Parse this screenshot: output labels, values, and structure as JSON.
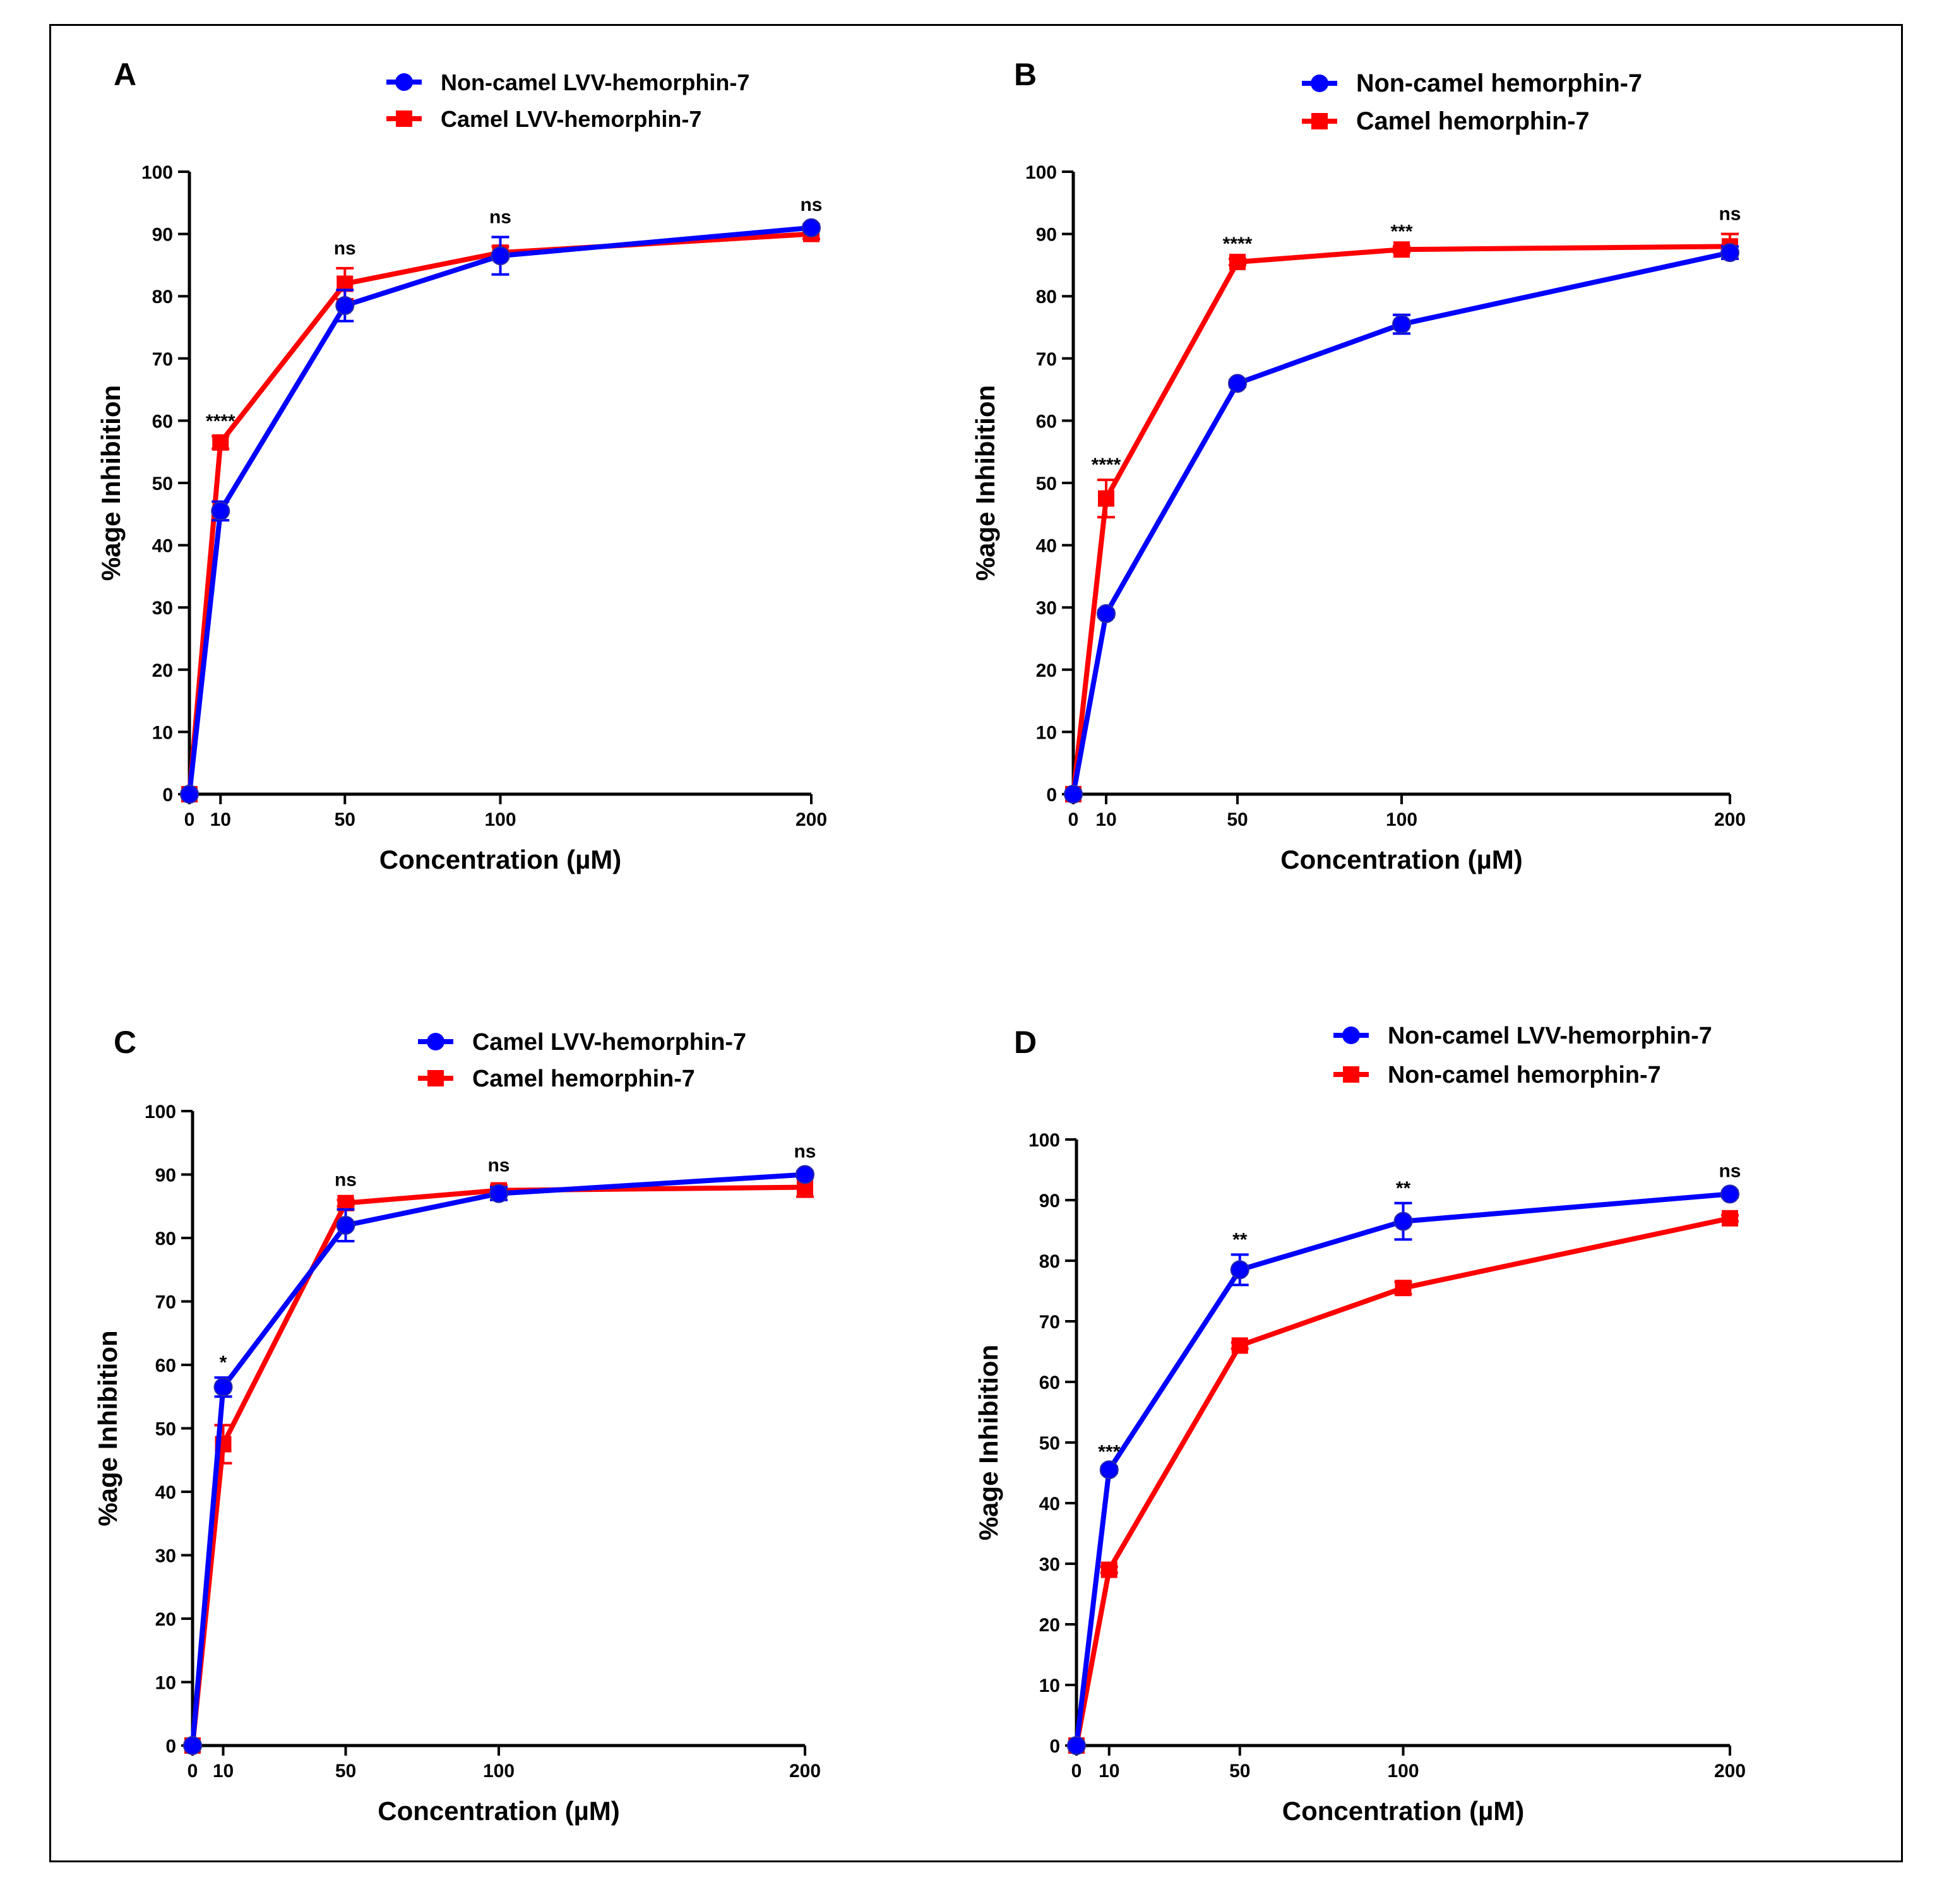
{
  "chart_data": [
    {
      "type": "line",
      "panel": "A",
      "xlabel": "Concentration (µM)",
      "ylabel": "%age Inhibition",
      "x": [
        0,
        10,
        50,
        100,
        200
      ],
      "xticks": [
        "0",
        "10",
        "50",
        "100",
        "200"
      ],
      "ylim": [
        0,
        100
      ],
      "yticks": [
        "0",
        "10",
        "20",
        "30",
        "40",
        "50",
        "60",
        "70",
        "80",
        "90",
        "100"
      ],
      "legend_position": "top",
      "grid": false,
      "series": [
        {
          "name": "Non-camel LVV-hemorphin-7",
          "color": "#0000ff",
          "marker": "circle",
          "values": [
            0,
            45.5,
            78.5,
            86.5,
            91
          ],
          "errors": [
            0,
            1.5,
            2.5,
            3,
            0.5
          ]
        },
        {
          "name": "Camel LVV-hemorphin-7",
          "color": "#ff0000",
          "marker": "square",
          "values": [
            0,
            56.5,
            82,
            87,
            90
          ],
          "errors": [
            0,
            1,
            2.5,
            1,
            0.8
          ]
        }
      ],
      "significance": [
        "",
        "****",
        "ns",
        "ns",
        "ns"
      ]
    },
    {
      "type": "line",
      "panel": "B",
      "xlabel": "Concentration (µM)",
      "ylabel": "%age Inhibition",
      "x": [
        0,
        10,
        50,
        100,
        200
      ],
      "xticks": [
        "0",
        "10",
        "50",
        "100",
        "200"
      ],
      "ylim": [
        0,
        100
      ],
      "yticks": [
        "0",
        "10",
        "20",
        "30",
        "40",
        "50",
        "60",
        "70",
        "80",
        "90",
        "100"
      ],
      "legend_position": "top",
      "grid": false,
      "series": [
        {
          "name": "Non-camel hemorphin-7",
          "color": "#0000ff",
          "marker": "circle",
          "values": [
            0,
            29,
            66,
            75.5,
            87
          ],
          "errors": [
            0,
            0.5,
            0.5,
            1.5,
            1
          ]
        },
        {
          "name": "Camel hemorphin-7",
          "color": "#ff0000",
          "marker": "square",
          "values": [
            0,
            47.5,
            85.5,
            87.5,
            88
          ],
          "errors": [
            0,
            3,
            0.5,
            0.5,
            2
          ]
        }
      ],
      "significance": [
        "",
        "****",
        "****",
        "***",
        "ns"
      ]
    },
    {
      "type": "line",
      "panel": "C",
      "xlabel": "Concentration (µM)",
      "ylabel": "%age Inhibition",
      "x": [
        0,
        10,
        50,
        100,
        200
      ],
      "xticks": [
        "0",
        "10",
        "50",
        "100",
        "200"
      ],
      "ylim": [
        0,
        100
      ],
      "yticks": [
        "0",
        "10",
        "20",
        "30",
        "40",
        "50",
        "60",
        "70",
        "80",
        "90",
        "100"
      ],
      "legend_position": "top",
      "grid": false,
      "series": [
        {
          "name": "Camel LVV-hemorphin-7",
          "color": "#0000ff",
          "marker": "circle",
          "values": [
            0,
            56.5,
            82,
            87,
            90
          ],
          "errors": [
            0,
            1.5,
            2.5,
            1,
            0.5
          ]
        },
        {
          "name": "Camel hemorphin-7",
          "color": "#ff0000",
          "marker": "square",
          "values": [
            0,
            47.5,
            85.5,
            87.5,
            88
          ],
          "errors": [
            0,
            3,
            0.5,
            0.8,
            1.5
          ]
        }
      ],
      "significance": [
        "",
        "*",
        "ns",
        "ns",
        "ns"
      ]
    },
    {
      "type": "line",
      "panel": "D",
      "xlabel": "Concentration (µM)",
      "ylabel": "%age Inhibition",
      "x": [
        0,
        10,
        50,
        100,
        200
      ],
      "xticks": [
        "0",
        "10",
        "50",
        "100",
        "200"
      ],
      "ylim": [
        0,
        100
      ],
      "yticks": [
        "0",
        "10",
        "20",
        "30",
        "40",
        "50",
        "60",
        "70",
        "80",
        "90",
        "100"
      ],
      "legend_position": "top",
      "grid": false,
      "series": [
        {
          "name": "Non-camel LVV-hemorphin-7",
          "color": "#0000ff",
          "marker": "circle",
          "values": [
            0,
            45.5,
            78.5,
            86.5,
            91
          ],
          "errors": [
            0,
            0.5,
            2.5,
            3,
            0.5
          ]
        },
        {
          "name": "Non-camel hemorphin-7",
          "color": "#ff0000",
          "marker": "square",
          "values": [
            0,
            29,
            66,
            75.5,
            87
          ],
          "errors": [
            0,
            0.5,
            0.5,
            1,
            0.5
          ]
        }
      ],
      "significance": [
        "",
        "***",
        "**",
        "**",
        "ns"
      ]
    }
  ]
}
